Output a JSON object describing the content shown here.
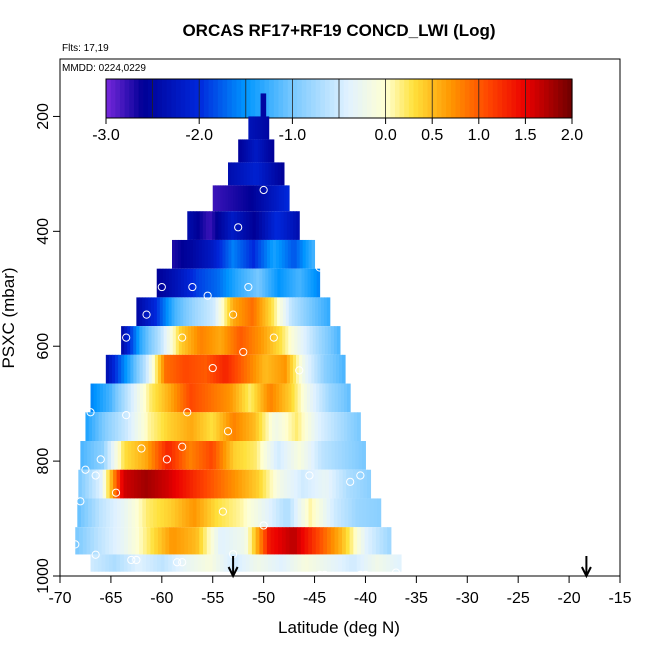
{
  "chart_data": {
    "type": "heatmap",
    "title": "ORCAS RF17+RF19 CONCD_LWI (Log)",
    "subtitle_lines": [
      "Flts: 17,19",
      "MMDD: 0224,0229"
    ],
    "xlabel": "Latitude (deg N)",
    "ylabel": "PSXC (mbar)",
    "xlim": [
      -70,
      -15
    ],
    "ylim": [
      1000,
      100
    ],
    "x_ticks": [
      -70,
      -65,
      -60,
      -55,
      -50,
      -45,
      -40,
      -35,
      -30,
      -25,
      -20,
      -15
    ],
    "y_ticks": [
      200,
      400,
      600,
      800,
      1000
    ],
    "colorbar": {
      "range": [
        -3.0,
        2.0
      ],
      "tick_values": [
        -3.0,
        -2.0,
        -1.0,
        0.0,
        0.5,
        1.0,
        1.5,
        2.0
      ],
      "tick_labels": [
        "-3.0",
        "-2.0",
        "-1.0",
        "0.0",
        "0.5",
        "1.0",
        "1.5",
        "2.0"
      ]
    },
    "arrows_latitude": [
      -53,
      -18.3
    ],
    "pressure_bins": [
      {
        "p": 180,
        "lat": [
          -50.3,
          -49.8
        ],
        "v": [
          -2.5,
          -2.5
        ]
      },
      {
        "p": 220,
        "lat": [
          -51.5,
          -49.5
        ],
        "v": [
          -2.3,
          -2.5
        ]
      },
      {
        "p": 260,
        "lat": [
          -52.5,
          -49.0
        ],
        "v": [
          -2.6,
          -2.2,
          -2.6
        ]
      },
      {
        "p": 300,
        "lat": [
          -53.5,
          -48.0
        ],
        "v": [
          -2.4,
          -2.1,
          -2.6
        ]
      },
      {
        "p": 340,
        "lat": [
          -55.0,
          -47.5
        ],
        "v": [
          -2.8,
          -2.7,
          -2.6,
          -2.3,
          -2.0
        ]
      },
      {
        "p": 390,
        "lat": [
          -57.5,
          -46.5
        ],
        "v": [
          -2.4,
          -2.8,
          -2.2,
          -2.6,
          -2.0,
          -2.4
        ]
      },
      {
        "p": 440,
        "lat": [
          -59.0,
          -45.0
        ],
        "v": [
          -2.7,
          -2.5,
          -2.2,
          -1.6,
          -2.0,
          -1.4,
          -1.8,
          -1.2
        ]
      },
      {
        "p": 490,
        "lat": [
          -60.5,
          -44.5
        ],
        "v": [
          -2.6,
          -2.3,
          -1.9,
          -1.7,
          -1.3,
          -1.0,
          -1.5,
          -1.2,
          -1.6
        ]
      },
      {
        "p": 540,
        "lat": [
          -62.5,
          -43.5
        ],
        "v": [
          -2.5,
          -2.0,
          -1.2,
          -0.8,
          -0.5,
          0.6,
          0.9,
          0.3,
          -0.6,
          -1.0,
          -1.3
        ]
      },
      {
        "p": 590,
        "lat": [
          -64.0,
          -42.5
        ],
        "v": [
          -2.5,
          -1.3,
          -0.6,
          0.4,
          0.8,
          0.6,
          1.0,
          0.7,
          0.3,
          -0.3,
          -0.8,
          -1.2
        ]
      },
      {
        "p": 640,
        "lat": [
          -65.5,
          -42.0
        ],
        "v": [
          -2.4,
          -1.5,
          -0.6,
          0.9,
          1.1,
          1.0,
          1.3,
          0.9,
          0.5,
          0.7,
          -0.3,
          -0.9,
          -1.2
        ]
      },
      {
        "p": 690,
        "lat": [
          -67.0,
          -41.5
        ],
        "v": [
          -1.6,
          -1.2,
          -0.5,
          0.2,
          0.6,
          1.1,
          0.9,
          0.7,
          0.2,
          0.8,
          0.4,
          -0.3,
          -0.8,
          -1.1
        ]
      },
      {
        "p": 740,
        "lat": [
          -67.5,
          -40.5
        ],
        "v": [
          -1.4,
          -0.9,
          -0.5,
          0.1,
          0.4,
          0.6,
          0.3,
          0.8,
          0.5,
          -0.2,
          0.2,
          -0.4,
          -0.7,
          -1.0
        ]
      },
      {
        "p": 790,
        "lat": [
          -68.0,
          -40.0
        ],
        "v": [
          -1.2,
          -0.9,
          0.3,
          0.6,
          1.3,
          0.8,
          1.1,
          0.4,
          0.2,
          -0.5,
          -0.1,
          -0.6,
          -0.8,
          -1.0
        ]
      },
      {
        "p": 840,
        "lat": [
          -68.2,
          -39.5
        ],
        "v": [
          -1.0,
          -0.4,
          1.6,
          1.8,
          1.6,
          1.3,
          1.0,
          0.7,
          0.4,
          -0.2,
          -0.5,
          -0.3,
          -0.7,
          -0.9
        ]
      },
      {
        "p": 890,
        "lat": [
          -68.3,
          -38.5
        ],
        "v": [
          -1.1,
          -0.6,
          -0.3,
          0.2,
          0.4,
          0.7,
          0.3,
          0.1,
          -0.3,
          -0.7,
          0.1,
          -0.5,
          -0.8,
          -0.9
        ]
      },
      {
        "p": 940,
        "lat": [
          -68.5,
          -37.5
        ],
        "v": [
          -1.0,
          -0.6,
          -0.3,
          0.2,
          0.7,
          0.5,
          -0.4,
          -0.2,
          1.4,
          1.7,
          1.1,
          0.5,
          -0.4,
          -0.8
        ]
      },
      {
        "p": 985,
        "lat": [
          -67.0,
          -36.5
        ],
        "v": [
          -0.5,
          -0.7,
          -0.4,
          -0.6,
          -0.3,
          -0.1,
          -0.5,
          -0.2,
          -0.4,
          -0.1,
          -0.3,
          -0.5,
          -0.2,
          -0.4
        ]
      }
    ],
    "markers": [
      [
        -50.0,
        328
      ],
      [
        -58.5,
        393
      ],
      [
        -52.5,
        393
      ],
      [
        -44.5,
        463
      ],
      [
        -60.0,
        497
      ],
      [
        -57.0,
        497
      ],
      [
        -51.5,
        497
      ],
      [
        -55.5,
        512
      ],
      [
        -61.5,
        545
      ],
      [
        -53.0,
        545
      ],
      [
        -63.5,
        585
      ],
      [
        -58.0,
        585
      ],
      [
        -49.0,
        585
      ],
      [
        -52.0,
        610
      ],
      [
        -55.0,
        638
      ],
      [
        -46.5,
        642
      ],
      [
        -67.0,
        715
      ],
      [
        -63.5,
        720
      ],
      [
        -57.5,
        715
      ],
      [
        -53.5,
        748
      ],
      [
        -58.0,
        775
      ],
      [
        -62.0,
        778
      ],
      [
        -59.5,
        797
      ],
      [
        -66.0,
        797
      ],
      [
        -67.5,
        815
      ],
      [
        -66.5,
        825
      ],
      [
        -45.5,
        825
      ],
      [
        -40.5,
        825
      ],
      [
        -41.5,
        836
      ],
      [
        -64.5,
        855
      ],
      [
        -68.0,
        870
      ],
      [
        -54.0,
        888
      ],
      [
        -50.0,
        912
      ],
      [
        -68.5,
        945
      ],
      [
        -53.0,
        962
      ],
      [
        -66.5,
        963
      ],
      [
        -62.5,
        972
      ],
      [
        -63.0,
        972
      ],
      [
        -58.5,
        976
      ],
      [
        -58.0,
        976
      ],
      [
        -44.0,
        998
      ],
      [
        -44.5,
        998
      ],
      [
        -40.0,
        998
      ],
      [
        -40.5,
        998
      ],
      [
        -37.0,
        994
      ]
    ]
  }
}
